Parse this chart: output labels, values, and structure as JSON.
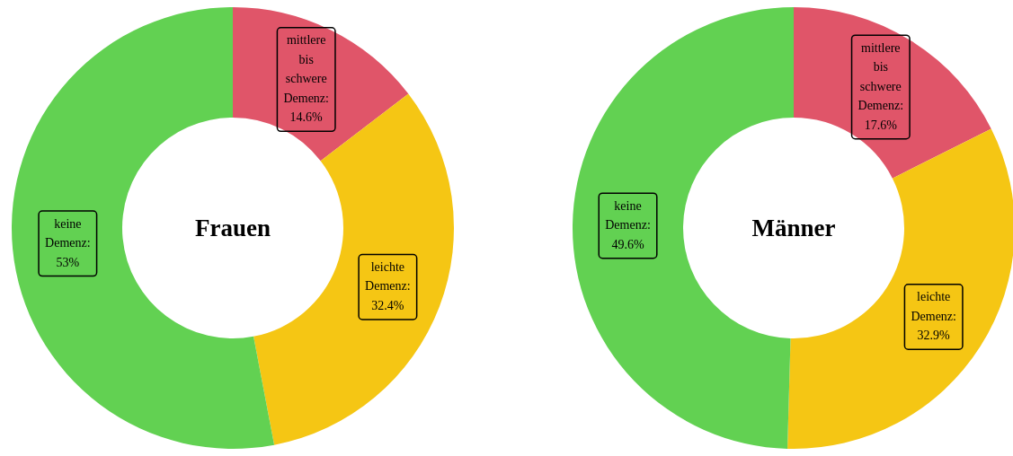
{
  "chart_data": [
    {
      "type": "donut",
      "title": "Frauen",
      "categories": [
        null,
        null,
        null
      ],
      "values": [
        14.6,
        32.4,
        53
      ],
      "colors": [
        "#e05569",
        "#f5c614",
        "#62d152"
      ],
      "value_labels": [
        "mittlere bis schwere Demenz: 14.6%",
        "leichte Demenz: 32.4%",
        "keine Demenz: 53%"
      ]
    },
    {
      "type": "donut",
      "title": "Männer",
      "categories": [
        null,
        null,
        null
      ],
      "values": [
        17.6,
        32.9,
        49.6
      ],
      "colors": [
        "#e05569",
        "#f5c614",
        "#62d152"
      ],
      "value_labels": [
        "mittlere bis schwere Demenz: 17.6%",
        "leichte Demenz: 32.9%",
        "keine Demenz: 49.6%"
      ]
    }
  ]
}
